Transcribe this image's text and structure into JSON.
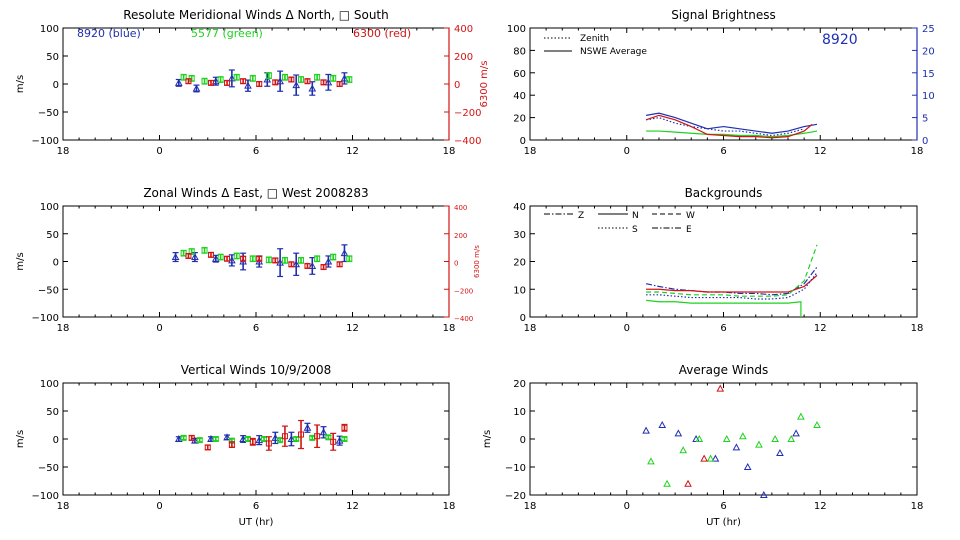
{
  "colors": {
    "axis": "#000000",
    "blue": "#1f2fb0",
    "green": "#1ed21e",
    "red": "#d21414",
    "right_axis_red": "#d21414",
    "right_axis_blue": "#1f2fb0"
  },
  "panels": [
    {
      "id": "meridional",
      "title": "Resolute Meridional Winds Δ North, □ South",
      "ylabel": "m/s",
      "xlabel": "",
      "xticks": [
        "18",
        "0",
        "6",
        "12",
        "18"
      ],
      "yticks": [
        "100",
        "50",
        "0",
        "−50",
        "−100"
      ],
      "right_label": "6300 m/s",
      "right_ticks": [
        "400",
        "200",
        "0",
        "−200",
        "−400"
      ],
      "annotations": [
        {
          "text": "8920 (blue)",
          "color": "blue"
        },
        {
          "text": "5577 (green)",
          "color": "green"
        },
        {
          "text": "6300 (red)",
          "color": "red"
        }
      ]
    },
    {
      "id": "zonal",
      "title": "Zonal Winds Δ East, □ West 2008283",
      "ylabel": "m/s",
      "xlabel": "",
      "xticks": [
        "18",
        "0",
        "6",
        "12",
        "18"
      ],
      "yticks": [
        "100",
        "50",
        "0",
        "−50",
        "−100"
      ],
      "right_label": "6300 m/s",
      "right_ticks": [
        "400",
        "200",
        "0",
        "−200",
        "−400"
      ]
    },
    {
      "id": "vertical",
      "title": "Vertical Winds 10/9/2008",
      "ylabel": "m/s",
      "xlabel": "UT (hr)",
      "xticks": [
        "18",
        "0",
        "6",
        "12",
        "18"
      ],
      "yticks": [
        "100",
        "50",
        "0",
        "−50",
        "−100"
      ]
    },
    {
      "id": "brightness",
      "title": "Signal Brightness",
      "ylabel": "",
      "xlabel": "",
      "xticks": [
        "18",
        "0",
        "6",
        "12",
        "18"
      ],
      "yticks": [
        "100",
        "80",
        "60",
        "40",
        "20",
        "0"
      ],
      "right_ticks": [
        "25",
        "20",
        "15",
        "10",
        "5",
        "0"
      ],
      "legend": [
        "Zenith",
        "NSWE Average"
      ],
      "annotation": "8920"
    },
    {
      "id": "backgrounds",
      "title": "Backgrounds",
      "ylabel": "",
      "xlabel": "",
      "xticks": [
        "18",
        "0",
        "6",
        "12",
        "18"
      ],
      "yticks": [
        "40",
        "30",
        "20",
        "10",
        "0"
      ],
      "legend": [
        "Z",
        "N",
        "W",
        "S",
        "E"
      ]
    },
    {
      "id": "average",
      "title": "Average Winds",
      "ylabel": "m/s",
      "xlabel": "UT (hr)",
      "xticks": [
        "18",
        "0",
        "6",
        "12",
        "18"
      ],
      "yticks": [
        "20",
        "10",
        "0",
        "−10",
        "−20"
      ]
    }
  ],
  "chart_data": [
    {
      "type": "scatter",
      "title": "Resolute Meridional Winds Δ North, □ South",
      "ylabel": "m/s",
      "xlim": [
        -6,
        18
      ],
      "ylim": [
        -100,
        100
      ],
      "series": [
        {
          "name": "8920 (blue)",
          "color": "blue",
          "x": [
            1.2,
            2.3,
            3.5,
            4.5,
            5.5,
            6.7,
            7.5,
            8.5,
            9.5,
            10.5,
            11.5
          ],
          "y": [
            2,
            -8,
            5,
            10,
            -3,
            8,
            5,
            -2,
            -8,
            3,
            10
          ],
          "err": [
            6,
            6,
            7,
            15,
            10,
            12,
            18,
            18,
            12,
            14,
            10
          ]
        },
        {
          "name": "5577 (green)",
          "color": "green",
          "x": [
            1.5,
            2.0,
            2.8,
            3.8,
            4.8,
            5.8,
            6.8,
            7.8,
            8.8,
            9.8,
            10.8,
            11.8
          ],
          "y": [
            12,
            10,
            5,
            8,
            12,
            10,
            15,
            12,
            8,
            12,
            10,
            8
          ],
          "err": [
            5,
            5,
            5,
            5,
            5,
            5,
            5,
            5,
            5,
            5,
            5,
            5
          ]
        },
        {
          "name": "6300 (red)",
          "color": "red",
          "x": [
            1.8,
            3.2,
            4.2,
            5.2,
            6.2,
            7.2,
            8.2,
            9.2,
            10.2,
            11.2
          ],
          "y": [
            5,
            2,
            2,
            5,
            0,
            3,
            8,
            5,
            3,
            0
          ],
          "err": [
            4,
            4,
            4,
            4,
            4,
            4,
            4,
            4,
            4,
            4
          ]
        }
      ]
    },
    {
      "type": "scatter",
      "title": "Zonal Winds Δ East, □ West 2008283",
      "ylabel": "m/s",
      "xlim": [
        -6,
        18
      ],
      "ylim": [
        -100,
        100
      ],
      "series": [
        {
          "name": "8920 (blue)",
          "color": "blue",
          "x": [
            1.0,
            2.2,
            3.5,
            4.5,
            5.2,
            6.2,
            7.5,
            8.5,
            9.5,
            10.5,
            11.5
          ],
          "y": [
            8,
            8,
            5,
            2,
            0,
            0,
            -2,
            -5,
            -8,
            0,
            15
          ],
          "err": [
            8,
            8,
            6,
            10,
            15,
            10,
            25,
            20,
            15,
            10,
            15
          ]
        },
        {
          "name": "5577 (green)",
          "color": "green",
          "x": [
            1.5,
            2.0,
            2.8,
            3.8,
            4.8,
            5.8,
            6.8,
            7.8,
            8.8,
            9.8,
            10.8,
            11.8
          ],
          "y": [
            15,
            18,
            20,
            8,
            10,
            5,
            3,
            2,
            2,
            5,
            8,
            5
          ],
          "err": [
            5,
            5,
            5,
            5,
            5,
            5,
            5,
            5,
            5,
            5,
            5,
            5
          ]
        },
        {
          "name": "6300 (red)",
          "color": "red",
          "x": [
            1.8,
            3.2,
            4.2,
            5.2,
            6.2,
            7.2,
            8.2,
            9.2,
            10.2,
            11.2
          ],
          "y": [
            10,
            12,
            5,
            5,
            5,
            2,
            -5,
            -8,
            -10,
            -5
          ],
          "err": [
            4,
            4,
            4,
            4,
            4,
            4,
            4,
            4,
            4,
            4
          ]
        }
      ]
    },
    {
      "type": "scatter",
      "title": "Vertical Winds 10/9/2008",
      "ylabel": "m/s",
      "xlabel": "UT (hr)",
      "xlim": [
        -6,
        18
      ],
      "ylim": [
        -100,
        100
      ],
      "series": [
        {
          "name": "8920 (blue)",
          "color": "blue",
          "x": [
            1.2,
            2.2,
            3.2,
            4.2,
            5.2,
            6.2,
            7.2,
            8.2,
            9.2,
            10.2,
            11.2
          ],
          "y": [
            0,
            -3,
            0,
            3,
            0,
            -2,
            2,
            0,
            20,
            12,
            -3
          ],
          "err": [
            4,
            4,
            4,
            4,
            6,
            8,
            10,
            12,
            8,
            10,
            8
          ]
        },
        {
          "name": "5577 (green)",
          "color": "green",
          "x": [
            1.5,
            2.5,
            3.5,
            4.5,
            5.5,
            6.5,
            7.5,
            8.5,
            9.5,
            10.5,
            11.5
          ],
          "y": [
            2,
            -2,
            0,
            -3,
            0,
            0,
            -2,
            0,
            2,
            3,
            0
          ],
          "err": [
            3,
            3,
            3,
            3,
            3,
            3,
            3,
            3,
            3,
            3,
            3
          ]
        },
        {
          "name": "6300 (red)",
          "color": "red",
          "x": [
            2.0,
            3.0,
            4.5,
            5.8,
            6.8,
            7.8,
            8.8,
            9.8,
            10.8,
            11.5
          ],
          "y": [
            2,
            -15,
            -10,
            -5,
            -8,
            5,
            8,
            5,
            -5,
            20
          ],
          "err": [
            4,
            4,
            5,
            6,
            12,
            18,
            25,
            20,
            15,
            6
          ]
        }
      ]
    },
    {
      "type": "line",
      "title": "Signal Brightness",
      "xlim": [
        -6,
        18
      ],
      "ylim": [
        0,
        100
      ],
      "y2lim": [
        0,
        25
      ],
      "legend_placement": "top-left",
      "series": [
        {
          "name": "Zenith",
          "color": "blue",
          "style": "dotted",
          "x": [
            1.2,
            2,
            3,
            4,
            5,
            6,
            7,
            8,
            9,
            10,
            11
          ],
          "y": [
            18,
            20,
            15,
            12,
            10,
            8,
            8,
            6,
            4,
            6,
            10
          ]
        },
        {
          "name": "NSWE Average",
          "color": "blue",
          "style": "solid",
          "x": [
            1.2,
            2,
            3,
            4,
            5,
            6,
            7,
            8,
            9,
            10,
            11,
            11.8
          ],
          "y": [
            22,
            24,
            20,
            15,
            10,
            12,
            10,
            8,
            6,
            8,
            12,
            14
          ]
        },
        {
          "color": "green",
          "style": "solid",
          "x": [
            1.2,
            2,
            3,
            4,
            5,
            6,
            7,
            8,
            9,
            10,
            11,
            11.8
          ],
          "y": [
            8,
            8,
            7,
            6,
            5,
            5,
            4,
            4,
            3,
            4,
            6,
            8
          ]
        },
        {
          "color": "red",
          "style": "solid",
          "x": [
            1.2,
            2,
            3,
            4,
            5,
            6,
            7,
            8,
            9,
            10,
            11,
            11.5
          ],
          "y": [
            18,
            22,
            18,
            12,
            5,
            4,
            3,
            3,
            2,
            3,
            8,
            14
          ]
        }
      ]
    },
    {
      "type": "line",
      "title": "Backgrounds",
      "xlim": [
        -6,
        18
      ],
      "ylim": [
        0,
        40
      ],
      "legend_placement": "top-left",
      "series": [
        {
          "name": "Z",
          "color": "blue",
          "style": "dashdot",
          "x": [
            1.2,
            2,
            3,
            4,
            5,
            6,
            7,
            8,
            9,
            10,
            11,
            11.8
          ],
          "y": [
            12,
            11,
            10,
            9.5,
            9,
            9,
            8.5,
            8.5,
            8,
            8.5,
            12,
            18
          ]
        },
        {
          "name": "N",
          "color": "red",
          "style": "solid",
          "x": [
            1.2,
            2,
            3,
            4,
            5,
            6,
            7,
            8,
            9,
            10,
            11,
            11.8
          ],
          "y": [
            10,
            10,
            9.5,
            9.5,
            9,
            9,
            9,
            9,
            9,
            9,
            11,
            15
          ]
        },
        {
          "name": "W",
          "color": "green",
          "style": "dashed",
          "x": [
            1.2,
            2,
            3,
            4,
            5,
            6,
            7,
            8,
            9,
            10,
            11,
            11.8
          ],
          "y": [
            9,
            9,
            8.5,
            8,
            8,
            8,
            7.5,
            7.5,
            7.5,
            8,
            13,
            26
          ]
        },
        {
          "name": "S",
          "color": "blue",
          "style": "dotted",
          "x": [
            1.2,
            2,
            3,
            4,
            5,
            6,
            7,
            8,
            9,
            10,
            11,
            11.8
          ],
          "y": [
            8,
            8,
            7.5,
            7,
            7,
            7,
            7,
            6.5,
            6.5,
            7,
            10,
            16
          ]
        },
        {
          "name": "E",
          "color": "green",
          "style": "solid",
          "x": [
            1.2,
            2,
            3,
            4,
            5,
            6,
            7,
            8,
            9,
            10,
            10.8,
            10.8
          ],
          "y": [
            6,
            5.5,
            5.5,
            5,
            5,
            5,
            5,
            5,
            5,
            5,
            5.5,
            0
          ]
        }
      ]
    },
    {
      "type": "scatter",
      "title": "Average Winds",
      "ylabel": "m/s",
      "xlabel": "UT (hr)",
      "xlim": [
        -6,
        18
      ],
      "ylim": [
        -20,
        20
      ],
      "series": [
        {
          "color": "blue",
          "x": [
            1.2,
            2.2,
            3.2,
            4.3,
            5.5,
            6.8,
            7.5,
            8.5,
            9.5,
            10.5
          ],
          "y": [
            3,
            5,
            2,
            0,
            -7,
            -3,
            -10,
            -20,
            -5,
            2
          ]
        },
        {
          "color": "green",
          "x": [
            1.5,
            2.5,
            3.5,
            4.5,
            5.2,
            6.2,
            7.2,
            8.2,
            9.2,
            10.2,
            10.8,
            11.8
          ],
          "y": [
            -8,
            -16,
            -4,
            0,
            -7,
            0,
            1,
            -2,
            0,
            0,
            8,
            5
          ]
        },
        {
          "color": "red",
          "x": [
            3.8,
            4.8,
            5.8
          ],
          "y": [
            -16,
            -7,
            18
          ]
        }
      ]
    }
  ]
}
